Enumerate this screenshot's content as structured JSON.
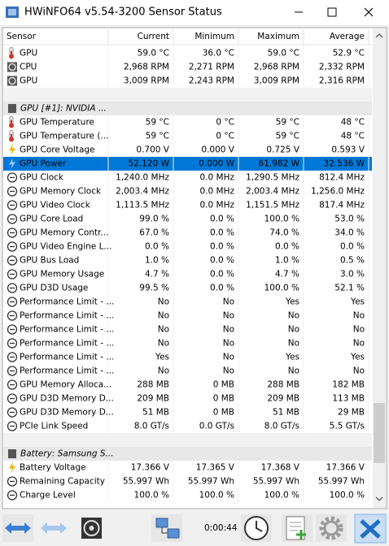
{
  "window": {
    "title": "HWiNFO64 v5.54-3200 Sensor Status"
  },
  "table": {
    "columns": [
      "Sensor",
      "Current",
      "Minimum",
      "Maximum",
      "Average"
    ],
    "sections": [
      {
        "rows": [
          {
            "icon": "temp",
            "cells": [
              "GPU",
              "59.0 °C",
              "36.0 °C",
              "59.0 °C",
              "52.9 °C"
            ]
          },
          {
            "icon": "fan",
            "cells": [
              "CPU",
              "2,968 RPM",
              "2,271 RPM",
              "2,968 RPM",
              "2,332 RPM"
            ]
          },
          {
            "icon": "fan",
            "cells": [
              "GPU",
              "3,009 RPM",
              "2,243 RPM",
              "3,009 RPM",
              "2,316 RPM"
            ]
          }
        ]
      },
      {
        "title": "GPU [#1]: NVIDIA ...",
        "rows": [
          {
            "icon": "temp",
            "cells": [
              "GPU Temperature",
              "59 °C",
              "0 °C",
              "59 °C",
              "48 °C"
            ]
          },
          {
            "icon": "temp",
            "cells": [
              "GPU Temperature (...",
              "59 °C",
              "0 °C",
              "59 °C",
              "48 °C"
            ]
          },
          {
            "icon": "volt",
            "cells": [
              "GPU Core Voltage",
              "0.700 V",
              "0.000 V",
              "0.725 V",
              "0.593 V"
            ]
          },
          {
            "icon": "volt",
            "selected": true,
            "cells": [
              "GPU Power",
              "52.120 W",
              "0.000 W",
              "61.982 W",
              "32.536 W"
            ]
          },
          {
            "icon": "gauge",
            "cells": [
              "GPU Clock",
              "1,240.0 MHz",
              "0.0 MHz",
              "1,290.5 MHz",
              "812.4 MHz"
            ]
          },
          {
            "icon": "gauge",
            "cells": [
              "GPU Memory Clock",
              "2,003.4 MHz",
              "0.0 MHz",
              "2,003.4 MHz",
              "1,256.0 MHz"
            ]
          },
          {
            "icon": "gauge",
            "cells": [
              "GPU Video Clock",
              "1,113.5 MHz",
              "0.0 MHz",
              "1,151.5 MHz",
              "817.4 MHz"
            ]
          },
          {
            "icon": "gauge",
            "cells": [
              "GPU Core Load",
              "99.0 %",
              "0.0 %",
              "100.0 %",
              "53.0 %"
            ]
          },
          {
            "icon": "gauge",
            "cells": [
              "GPU Memory Contr...",
              "67.0 %",
              "0.0 %",
              "74.0 %",
              "34.0 %"
            ]
          },
          {
            "icon": "gauge",
            "cells": [
              "GPU Video Engine L...",
              "0.0 %",
              "0.0 %",
              "0.0 %",
              "0.0 %"
            ]
          },
          {
            "icon": "gauge",
            "cells": [
              "GPU Bus Load",
              "1.0 %",
              "0.0 %",
              "1.0 %",
              "0.5 %"
            ]
          },
          {
            "icon": "gauge",
            "cells": [
              "GPU Memory Usage",
              "4.7 %",
              "0.0 %",
              "4.7 %",
              "3.0 %"
            ]
          },
          {
            "icon": "gauge",
            "cells": [
              "GPU D3D Usage",
              "99.5 %",
              "0.0 %",
              "100.0 %",
              "52.1 %"
            ]
          },
          {
            "icon": "gauge",
            "cells": [
              "Performance Limit - ...",
              "No",
              "No",
              "Yes",
              "Yes"
            ]
          },
          {
            "icon": "gauge",
            "cells": [
              "Performance Limit - ...",
              "No",
              "No",
              "No",
              "No"
            ]
          },
          {
            "icon": "gauge",
            "cells": [
              "Performance Limit - ...",
              "No",
              "No",
              "No",
              "No"
            ]
          },
          {
            "icon": "gauge",
            "cells": [
              "Performance Limit - ...",
              "No",
              "No",
              "No",
              "No"
            ]
          },
          {
            "icon": "gauge",
            "cells": [
              "Performance Limit - ...",
              "Yes",
              "No",
              "Yes",
              "Yes"
            ]
          },
          {
            "icon": "gauge",
            "cells": [
              "Performance Limit - ...",
              "No",
              "No",
              "No",
              "No"
            ]
          },
          {
            "icon": "gauge",
            "cells": [
              "GPU Memory Alloca...",
              "288 MB",
              "0 MB",
              "288 MB",
              "182 MB"
            ]
          },
          {
            "icon": "gauge",
            "cells": [
              "GPU D3D Memory D...",
              "209 MB",
              "0 MB",
              "209 MB",
              "113 MB"
            ]
          },
          {
            "icon": "gauge",
            "cells": [
              "GPU D3D Memory D...",
              "51 MB",
              "0 MB",
              "51 MB",
              "29 MB"
            ]
          },
          {
            "icon": "gauge",
            "cells": [
              "PCIe Link Speed",
              "8.0 GT/s",
              "0.0 GT/s",
              "8.0 GT/s",
              "5.5 GT/s"
            ]
          }
        ]
      },
      {
        "title": "Battery: Samsung S...",
        "rows": [
          {
            "icon": "volt",
            "cells": [
              "Battery Voltage",
              "17.366 V",
              "17.365 V",
              "17.368 V",
              "17.366 V"
            ]
          },
          {
            "icon": "gauge",
            "cells": [
              "Remaining Capacity",
              "55.997 Wh",
              "55.997 Wh",
              "55.997 Wh",
              "55.997 Wh"
            ]
          },
          {
            "icon": "gauge",
            "cells": [
              "Charge Level",
              "100.0 %",
              "100.0 %",
              "100.0 %",
              "100.0 %"
            ]
          }
        ]
      }
    ]
  },
  "toolbar": {
    "timer": "0:00:44"
  }
}
